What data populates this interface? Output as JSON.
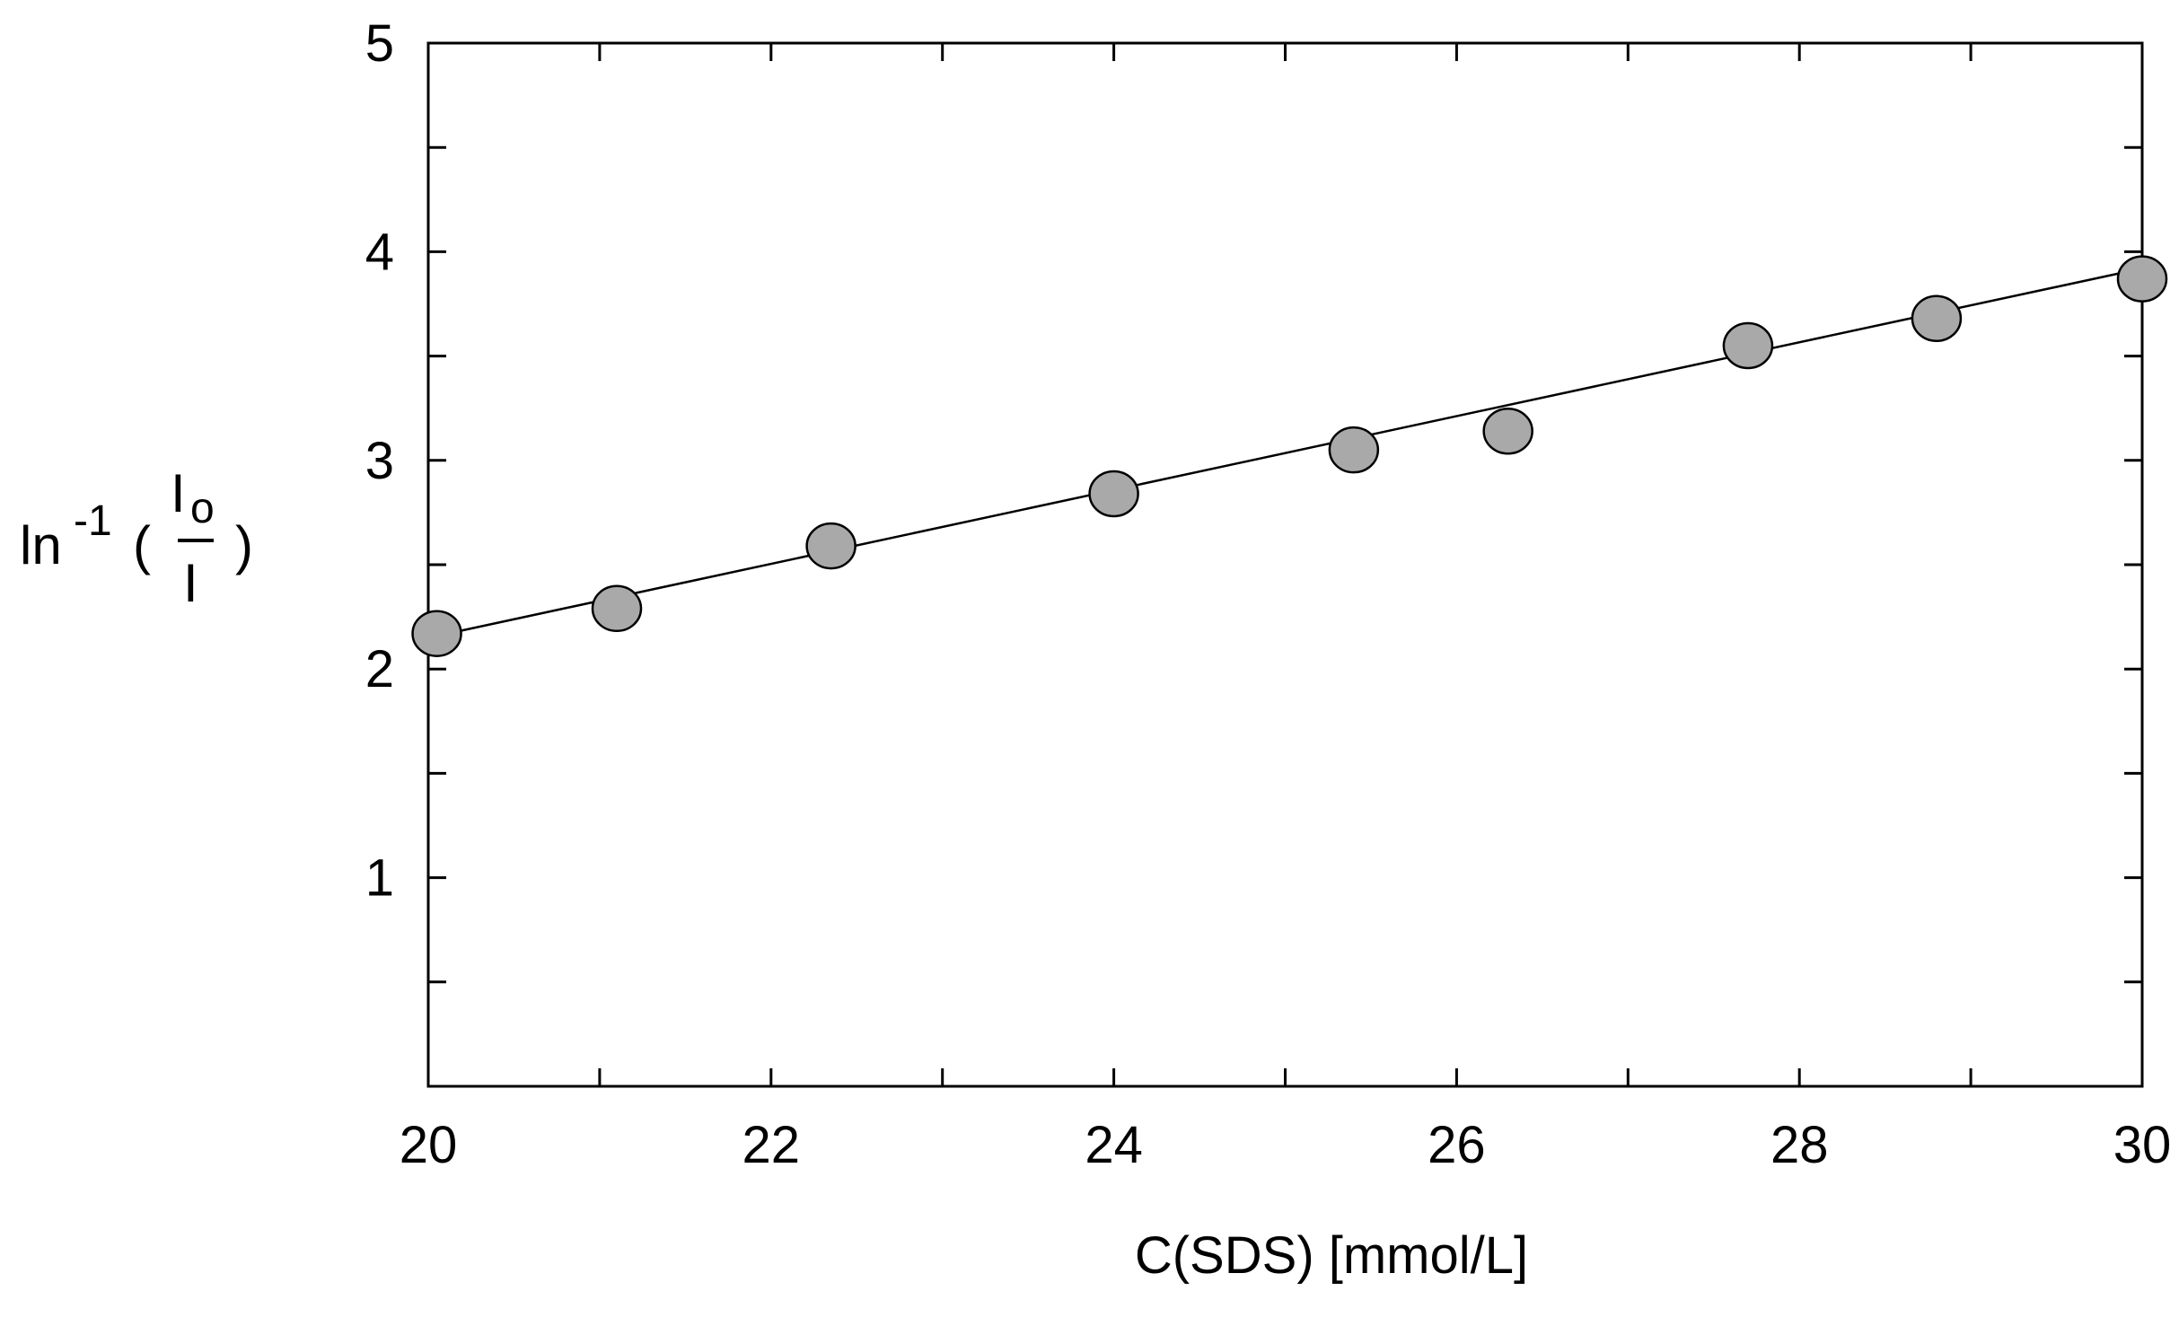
{
  "chart_data": {
    "type": "scatter",
    "title": "",
    "xlabel": "C(SDS) [mmol/L]",
    "ylabel": {
      "prefix": "ln",
      "superscript": "-1",
      "open_paren": "(",
      "numerator": "I",
      "numerator_sub": "o",
      "denominator": "I",
      "close_paren": ")"
    },
    "xlim": [
      20,
      30
    ],
    "ylim": [
      0,
      5
    ],
    "x_ticks": [
      20,
      22,
      24,
      26,
      28,
      30
    ],
    "x_tick_labels": [
      "20",
      "22",
      "24",
      "26",
      "28",
      "30"
    ],
    "y_ticks": [
      1,
      2,
      3,
      4,
      5
    ],
    "y_tick_labels": [
      "1",
      "2",
      "3",
      "4",
      "5"
    ],
    "y_minor_ticks": [
      0.5,
      1.5,
      2.5,
      3.5,
      4.5
    ],
    "x_minor_ticks": [
      21,
      23,
      25,
      27,
      29
    ],
    "grid": false,
    "legend": "none",
    "marker_color": "#a9a9a9",
    "series": [
      {
        "x": [
          20.05,
          21.1,
          22.35,
          24.0,
          25.4,
          26.3,
          27.7,
          28.8,
          30.0
        ],
        "y": [
          2.17,
          2.29,
          2.59,
          2.84,
          3.05,
          3.14,
          3.55,
          3.68,
          3.87
        ]
      }
    ],
    "fit_line": {
      "x": [
        20,
        30
      ],
      "y": [
        2.15,
        3.92
      ]
    }
  }
}
